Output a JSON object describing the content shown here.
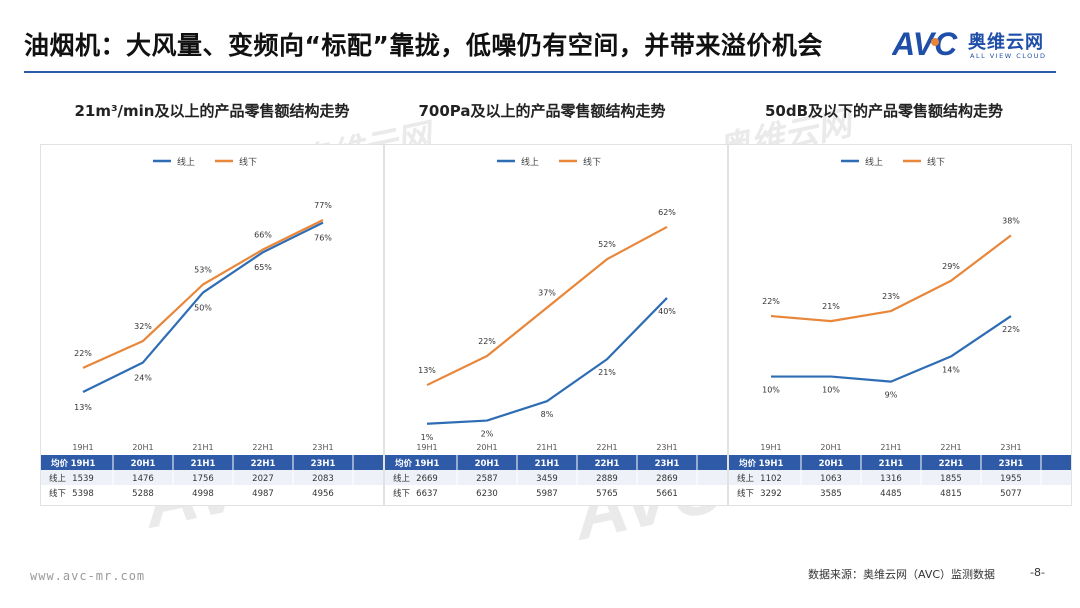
{
  "title": "油烟机：大风量、变频向“标配”靠拢，低噪仍有空间，并带来溢价机会",
  "logo": {
    "mark": "AVC",
    "name_cn": "奥维云网",
    "name_en": "ALL VIEW CLOUD"
  },
  "watermark": {
    "mark": "AVC",
    "name_cn": "奥维云网",
    "name_en": "ALL VIEW CLOUD"
  },
  "colors": {
    "online": "#2e6db4",
    "offline": "#e8863a",
    "header_bg": "#2f5aa7",
    "rule": "#2f5aa7"
  },
  "footer": {
    "source": "数据来源：奥维云网（AVC）监测数据",
    "page": "-8-",
    "url": "www.avc-mr.com"
  },
  "chart_data": [
    {
      "type": "line",
      "title": "21m³/min及以上的产品零售额结构走势",
      "categories": [
        "19H1",
        "20H1",
        "21H1",
        "22H1",
        "23H1"
      ],
      "series": [
        {
          "name": "线上",
          "values": [
            13,
            24,
            50,
            65,
            76
          ],
          "labels": [
            "13%",
            "24%",
            "50%",
            "65%",
            "76%"
          ]
        },
        {
          "name": "线下",
          "values": [
            22,
            32,
            53,
            66,
            77
          ],
          "labels": [
            "22%",
            "32%",
            "53%",
            "66%",
            "77%"
          ]
        }
      ],
      "ylim": [
        0,
        90
      ],
      "legend": "top",
      "table": {
        "header": "均价",
        "rows": [
          {
            "label": "线上",
            "values": [
              "1539",
              "1476",
              "1756",
              "2027",
              "2083"
            ]
          },
          {
            "label": "线下",
            "values": [
              "5398",
              "5288",
              "4998",
              "4987",
              "4956"
            ]
          }
        ]
      }
    },
    {
      "type": "line",
      "title": "700Pa及以上的产品零售额结构走势",
      "categories": [
        "19H1",
        "20H1",
        "21H1",
        "22H1",
        "23H1"
      ],
      "series": [
        {
          "name": "线上",
          "values": [
            1,
            2,
            8,
            21,
            40
          ],
          "labels": [
            "1%",
            "2%",
            "8%",
            "21%",
            "40%"
          ]
        },
        {
          "name": "线下",
          "values": [
            13,
            22,
            37,
            52,
            62
          ],
          "labels": [
            "13%",
            "22%",
            "37%",
            "52%",
            "62%"
          ]
        }
      ],
      "ylim": [
        0,
        75
      ],
      "legend": "top",
      "table": {
        "header": "均价",
        "rows": [
          {
            "label": "线上",
            "values": [
              "2669",
              "2587",
              "3459",
              "2889",
              "2869"
            ]
          },
          {
            "label": "线下",
            "values": [
              "6637",
              "6230",
              "5987",
              "5765",
              "5661"
            ]
          }
        ]
      }
    },
    {
      "type": "line",
      "title": "50dB及以下的产品零售额结构走势",
      "categories": [
        "19H1",
        "20H1",
        "21H1",
        "22H1",
        "23H1"
      ],
      "series": [
        {
          "name": "线上",
          "values": [
            10,
            10,
            9,
            14,
            22
          ],
          "labels": [
            "10%",
            "10%",
            "9%",
            "14%",
            "22%"
          ]
        },
        {
          "name": "线下",
          "values": [
            22,
            21,
            23,
            29,
            38
          ],
          "labels": [
            "22%",
            "21%",
            "23%",
            "29%",
            "38%"
          ]
        }
      ],
      "ylim": [
        0,
        48
      ],
      "legend": "top",
      "table": {
        "header": "均价",
        "rows": [
          {
            "label": "线上",
            "values": [
              "1102",
              "1063",
              "1316",
              "1855",
              "1955"
            ]
          },
          {
            "label": "线下",
            "values": [
              "3292",
              "3585",
              "4485",
              "4815",
              "5077"
            ]
          }
        ]
      }
    }
  ]
}
